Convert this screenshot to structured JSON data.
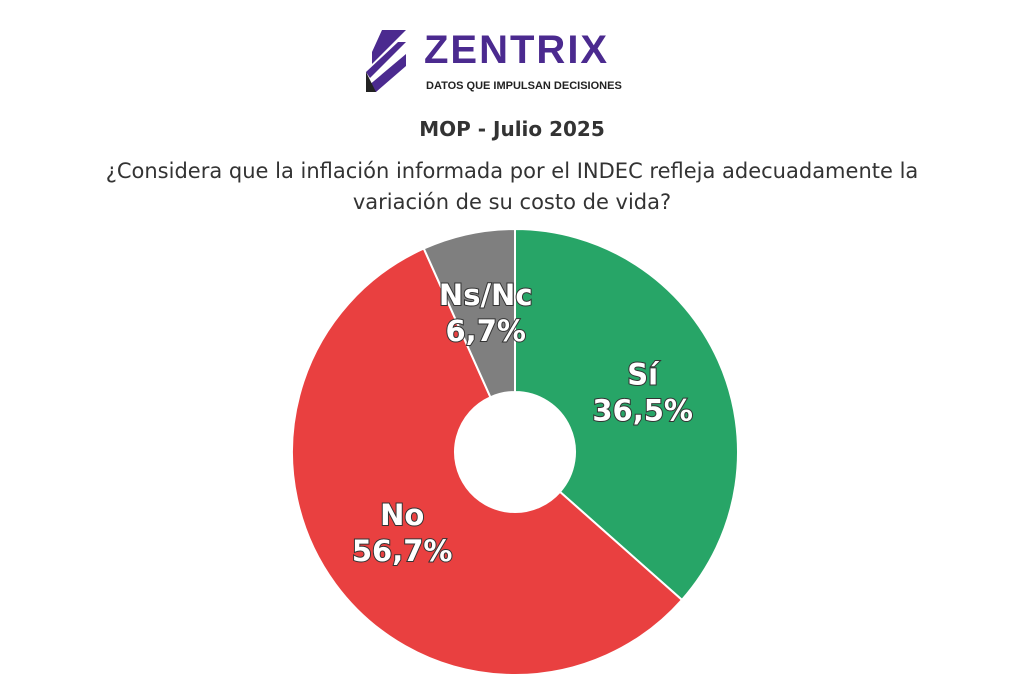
{
  "header": {
    "brand": "ZENTRIX",
    "tagline": "DATOS QUE IMPULSAN DECISIONES"
  },
  "chart_data": {
    "type": "donut",
    "title": "MOP - Julio 2025",
    "subtitle": "¿Considera que la inflación informada por el INDEC refleja adecuadamente la\nvariación de su costo de vida?",
    "categories": [
      "Sí",
      "No",
      "Ns/Nc"
    ],
    "values": [
      36.5,
      56.7,
      6.7
    ],
    "value_labels": [
      "36,5%",
      "56,7%",
      "6,7%"
    ],
    "colors": [
      "#27a567",
      "#e94040",
      "#7f7f7f"
    ]
  }
}
